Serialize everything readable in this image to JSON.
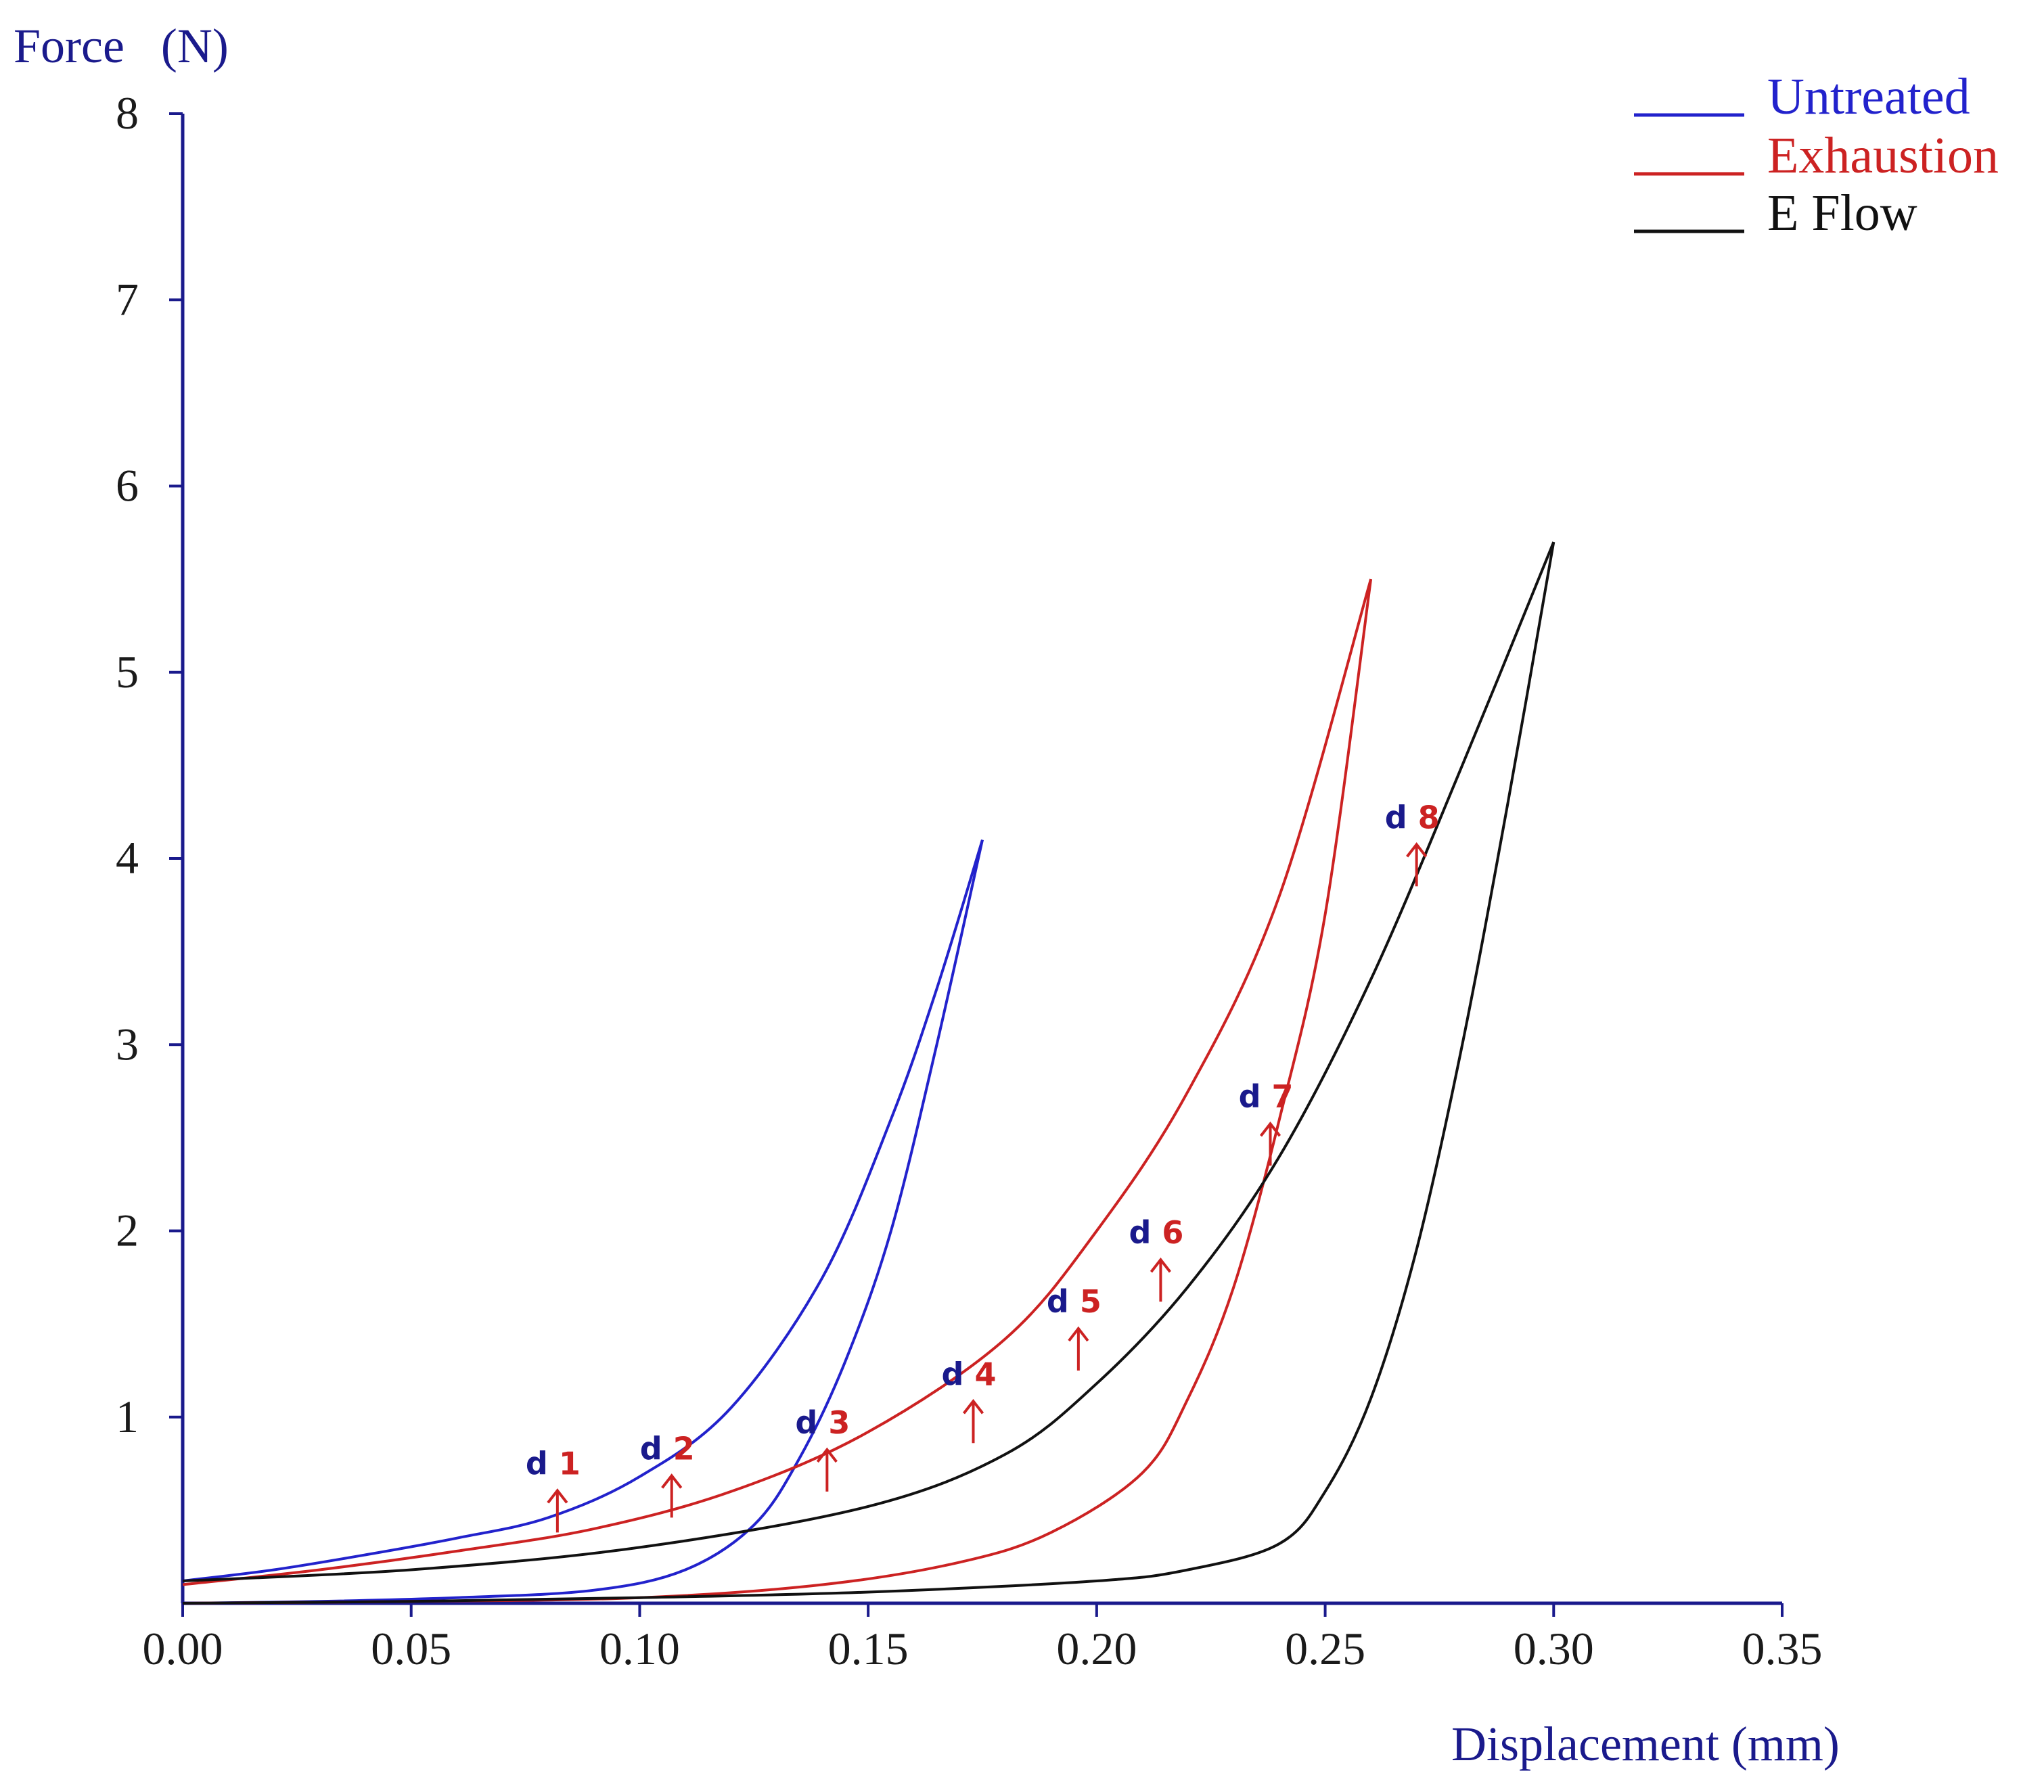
{
  "chart_data": {
    "type": "line",
    "title": "",
    "ylabel": "Force   (N)",
    "xlabel": "Displacement (mm)",
    "xlim": [
      0,
      0.35
    ],
    "ylim": [
      0,
      8
    ],
    "xticks": [
      "0.00",
      "0.05",
      "0.10",
      "0.15",
      "0.20",
      "0.25",
      "0.30",
      "0.35"
    ],
    "yticks": [
      "1",
      "2",
      "3",
      "4",
      "5",
      "6",
      "7",
      "8"
    ],
    "legend_position": "top-right",
    "axis_color": "#1a1a8c",
    "series": [
      {
        "name": "Untreated",
        "color": "#2222cc",
        "loading": [
          [
            0,
            0.12
          ],
          [
            0.02,
            0.18
          ],
          [
            0.04,
            0.26
          ],
          [
            0.06,
            0.35
          ],
          [
            0.08,
            0.46
          ],
          [
            0.1,
            0.68
          ],
          [
            0.12,
            1.05
          ],
          [
            0.14,
            1.75
          ],
          [
            0.155,
            2.6
          ],
          [
            0.165,
            3.3
          ],
          [
            0.175,
            4.1
          ]
        ],
        "unloading": [
          [
            0.175,
            4.1
          ],
          [
            0.165,
            3.0
          ],
          [
            0.155,
            2.0
          ],
          [
            0.145,
            1.3
          ],
          [
            0.135,
            0.78
          ],
          [
            0.125,
            0.42
          ],
          [
            0.11,
            0.18
          ],
          [
            0.09,
            0.07
          ],
          [
            0.06,
            0.03
          ],
          [
            0.03,
            0.01
          ],
          [
            0,
            0
          ]
        ]
      },
      {
        "name": "Exhaustion",
        "color": "#cc2222",
        "loading": [
          [
            0,
            0.1
          ],
          [
            0.03,
            0.18
          ],
          [
            0.06,
            0.28
          ],
          [
            0.09,
            0.4
          ],
          [
            0.12,
            0.6
          ],
          [
            0.15,
            0.92
          ],
          [
            0.18,
            1.42
          ],
          [
            0.2,
            2.0
          ],
          [
            0.22,
            2.75
          ],
          [
            0.24,
            3.8
          ],
          [
            0.26,
            5.5
          ]
        ],
        "unloading": [
          [
            0.26,
            5.5
          ],
          [
            0.25,
            3.7
          ],
          [
            0.24,
            2.6
          ],
          [
            0.23,
            1.7
          ],
          [
            0.22,
            1.1
          ],
          [
            0.21,
            0.7
          ],
          [
            0.19,
            0.38
          ],
          [
            0.17,
            0.22
          ],
          [
            0.14,
            0.1
          ],
          [
            0.1,
            0.03
          ],
          [
            0.05,
            0.01
          ],
          [
            0,
            0
          ]
        ]
      },
      {
        "name": "E Flow",
        "color": "#111111",
        "loading": [
          [
            0,
            0.12
          ],
          [
            0.05,
            0.18
          ],
          [
            0.1,
            0.3
          ],
          [
            0.15,
            0.52
          ],
          [
            0.18,
            0.8
          ],
          [
            0.2,
            1.18
          ],
          [
            0.22,
            1.7
          ],
          [
            0.24,
            2.4
          ],
          [
            0.26,
            3.35
          ],
          [
            0.28,
            4.5
          ],
          [
            0.3,
            5.7
          ]
        ],
        "unloading": [
          [
            0.3,
            5.7
          ],
          [
            0.29,
            4.3
          ],
          [
            0.28,
            3.0
          ],
          [
            0.27,
            1.9
          ],
          [
            0.26,
            1.1
          ],
          [
            0.25,
            0.6
          ],
          [
            0.24,
            0.32
          ],
          [
            0.22,
            0.18
          ],
          [
            0.2,
            0.12
          ],
          [
            0.15,
            0.06
          ],
          [
            0.1,
            0.03
          ],
          [
            0.05,
            0.01
          ],
          [
            0,
            0
          ]
        ]
      }
    ],
    "annotations": [
      {
        "prefix": "d",
        "num": "1",
        "x": 0.082,
        "y": 0.38
      },
      {
        "prefix": "d",
        "num": "2",
        "x": 0.107,
        "y": 0.46
      },
      {
        "prefix": "d",
        "num": "3",
        "x": 0.141,
        "y": 0.6
      },
      {
        "prefix": "d",
        "num": "4",
        "x": 0.173,
        "y": 0.86
      },
      {
        "prefix": "d",
        "num": "5",
        "x": 0.196,
        "y": 1.25
      },
      {
        "prefix": "d",
        "num": "6",
        "x": 0.214,
        "y": 1.62
      },
      {
        "prefix": "d",
        "num": "7",
        "x": 0.238,
        "y": 2.35
      },
      {
        "prefix": "d",
        "num": "8",
        "x": 0.27,
        "y": 3.85
      }
    ],
    "annotation_colors": {
      "prefix": "#1a1a8c",
      "number": "#cc2222",
      "arrow": "#cc2222"
    }
  }
}
